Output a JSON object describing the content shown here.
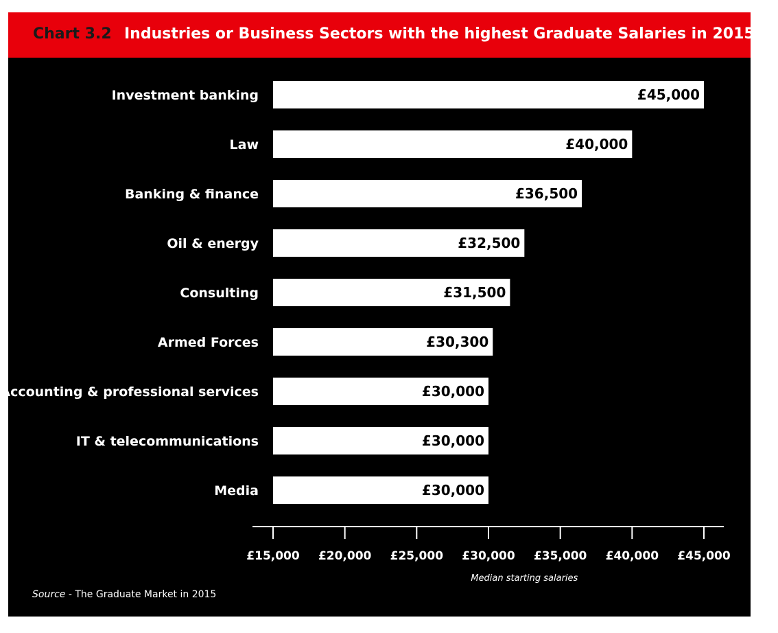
{
  "header": {
    "chart_number": "Chart 3.2",
    "title": "Industries or Business Sectors with the highest Graduate Salaries in 2015"
  },
  "source": {
    "label": "Source",
    "separator": " - ",
    "text": "The Graduate Market in 2015"
  },
  "colors": {
    "title_bar": "#e8000b",
    "background": "#000000",
    "bar": "#ffffff",
    "bar_label": "#000000",
    "text": "#ffffff"
  },
  "chart_data": {
    "type": "bar",
    "orientation": "horizontal",
    "title": "Industries or Business Sectors with the highest Graduate Salaries in 2015",
    "xlabel": "Median starting salaries",
    "ylabel": "",
    "categories": [
      "Investment banking",
      "Law",
      "Banking & finance",
      "Oil & energy",
      "Consulting",
      "Armed Forces",
      "Accounting & professional services",
      "IT & telecommunications",
      "Media"
    ],
    "values": [
      45000,
      40000,
      36500,
      32500,
      31500,
      30300,
      30000,
      30000,
      30000
    ],
    "value_labels": [
      "£45,000",
      "£40,000",
      "£36,500",
      "£32,500",
      "£31,500",
      "£30,300",
      "£30,000",
      "£30,000",
      "£30,000"
    ],
    "xlim": [
      15000,
      45000
    ],
    "xticks": [
      15000,
      20000,
      25000,
      30000,
      35000,
      40000,
      45000
    ],
    "xtick_labels": [
      "£15,000",
      "£20,000",
      "£25,000",
      "£30,000",
      "£35,000",
      "£40,000",
      "£45,000"
    ],
    "grid": false,
    "legend": "none"
  }
}
